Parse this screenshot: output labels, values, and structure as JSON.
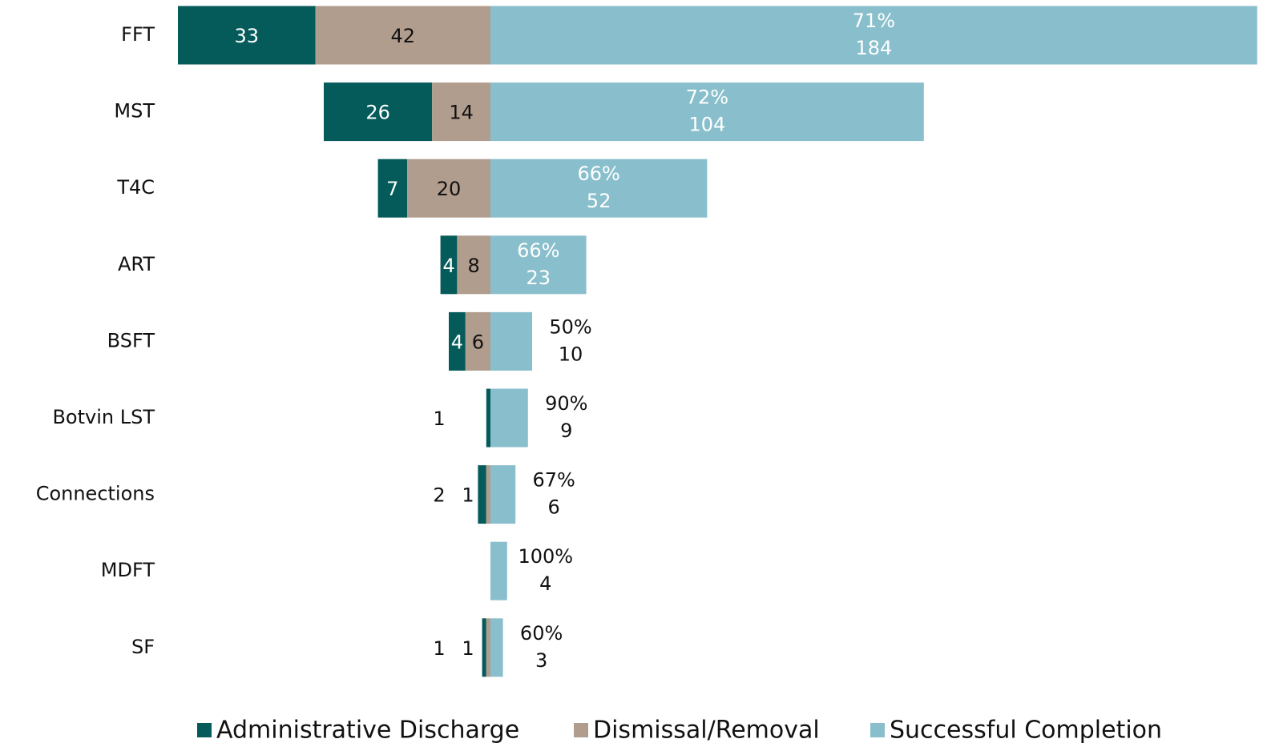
{
  "chart_data": {
    "type": "diverging-bar",
    "categories": [
      "FFT",
      "MST",
      "T4C",
      "ART",
      "BSFT",
      "Botvin LST",
      "Connections",
      "MDFT",
      "SF"
    ],
    "series": [
      {
        "name": "Administrative Discharge",
        "color": "#055a5a",
        "values": [
          33,
          26,
          7,
          4,
          4,
          1,
          2,
          0,
          1
        ]
      },
      {
        "name": "Dismissal/Removal",
        "color": "#b09d8e",
        "values": [
          42,
          14,
          20,
          8,
          6,
          0,
          1,
          0,
          1
        ]
      },
      {
        "name": "Successful Completion",
        "color": "#89bfcc",
        "values": [
          184,
          104,
          52,
          23,
          10,
          9,
          6,
          4,
          3
        ],
        "percent_labels": [
          "71%",
          "72%",
          "66%",
          "66%",
          "50%",
          "90%",
          "67%",
          "100%",
          "60%"
        ]
      }
    ],
    "legend": "bottom"
  }
}
